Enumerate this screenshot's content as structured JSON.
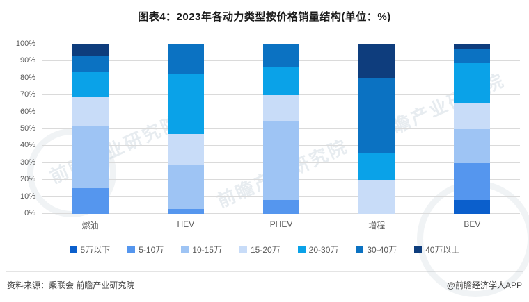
{
  "title": "图表4：2023年各动力类型按价格销量结构(单位：%)",
  "watermark_text": "前瞻产业研究院",
  "footer": {
    "source": "资料来源：乘联会 前瞻产业研究院",
    "credit": "@前瞻经济学人APP"
  },
  "chart_data": {
    "type": "bar",
    "stacked": true,
    "title": "2023年各动力类型按价格销量结构",
    "unit": "%",
    "categories": [
      "燃油",
      "HEV",
      "PHEV",
      "增程",
      "BEV"
    ],
    "series": [
      {
        "name": "5万以下",
        "color": "#0b5fcc",
        "values": [
          0,
          0,
          0,
          0,
          8
        ]
      },
      {
        "name": "5-10万",
        "color": "#5596ee",
        "values": [
          15,
          3,
          8,
          0,
          22
        ]
      },
      {
        "name": "10-15万",
        "color": "#9ec4f4",
        "values": [
          37,
          26,
          47,
          0,
          20
        ]
      },
      {
        "name": "15-20万",
        "color": "#c8dcf8",
        "values": [
          17,
          18,
          15,
          20,
          15
        ]
      },
      {
        "name": "20-30万",
        "color": "#0aa2e8",
        "values": [
          15,
          36,
          17,
          16,
          24
        ]
      },
      {
        "name": "30-40万",
        "color": "#0b72c2",
        "values": [
          9,
          17,
          13,
          44,
          8
        ]
      },
      {
        "name": "40万以上",
        "color": "#0e3d7d",
        "values": [
          7,
          0,
          0,
          20,
          3
        ]
      }
    ],
    "ylim": [
      0,
      100
    ],
    "yticks": [
      "0%",
      "10%",
      "20%",
      "30%",
      "40%",
      "50%",
      "60%",
      "70%",
      "80%",
      "90%",
      "100%"
    ],
    "grid": true,
    "legend_position": "bottom"
  }
}
